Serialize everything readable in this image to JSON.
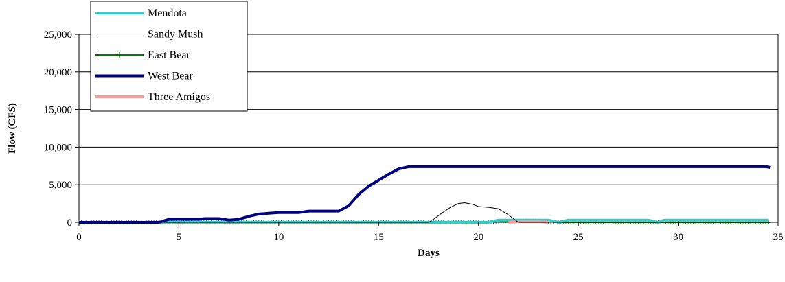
{
  "chart_data": {
    "type": "line",
    "title": "",
    "xlabel": "Days",
    "ylabel": "Flow (CFS)",
    "xlim": [
      0,
      35
    ],
    "ylim": [
      0,
      25000
    ],
    "x_ticks": [
      0,
      5,
      10,
      15,
      20,
      25,
      30,
      35
    ],
    "x_tick_labels": [
      "0",
      "5",
      "10",
      "15",
      "20",
      "25",
      "30",
      "35"
    ],
    "y_ticks": [
      0,
      5000,
      10000,
      15000,
      20000,
      25000
    ],
    "y_tick_labels": [
      "0",
      "5,000",
      "10,000",
      "15,000",
      "20,000",
      "25,000"
    ],
    "grid": "horizontal",
    "legend_position": "top-left",
    "series": [
      {
        "name": "Mendota",
        "color": "#33cccc",
        "style": "thick",
        "x": [
          0,
          20.5,
          21,
          23.5,
          24,
          24.5,
          28.5,
          29,
          29.3,
          34.5
        ],
        "y": [
          0,
          0,
          300,
          300,
          0,
          300,
          300,
          0,
          300,
          300
        ]
      },
      {
        "name": "Sandy Mush",
        "color": "#000000",
        "style": "thin",
        "x": [
          0,
          17.5,
          17.8,
          18.2,
          18.6,
          19,
          19.3,
          19.7,
          20,
          20.5,
          21,
          21.5,
          22,
          34.6
        ],
        "y": [
          0,
          0,
          500,
          1300,
          2000,
          2500,
          2600,
          2400,
          2100,
          2000,
          1800,
          1000,
          0,
          0
        ]
      },
      {
        "name": "East Bear",
        "color": "#008000",
        "style": "marker",
        "x": [
          0,
          20.5,
          21,
          22,
          23,
          23.5,
          24,
          34.6
        ],
        "y": [
          0,
          0,
          150,
          200,
          200,
          100,
          0,
          0
        ]
      },
      {
        "name": "West Bear",
        "color": "#000080",
        "style": "thick",
        "x": [
          0,
          4,
          4.5,
          6,
          6.3,
          7,
          7.5,
          8,
          8.5,
          9,
          9.5,
          10,
          11,
          11.5,
          13,
          13.5,
          14,
          14.5,
          15,
          15.5,
          16,
          16.5,
          17,
          34.4,
          34.6
        ],
        "y": [
          0,
          0,
          400,
          400,
          500,
          500,
          300,
          400,
          800,
          1100,
          1200,
          1300,
          1300,
          1500,
          1500,
          2200,
          3700,
          4800,
          5600,
          6400,
          7100,
          7400,
          7400,
          7400,
          7300
        ]
      },
      {
        "name": "Three Amigos",
        "color": "#ff9999",
        "style": "thick",
        "x": [
          21.5,
          22,
          23,
          23.5
        ],
        "y": [
          0,
          80,
          80,
          0
        ]
      }
    ]
  }
}
